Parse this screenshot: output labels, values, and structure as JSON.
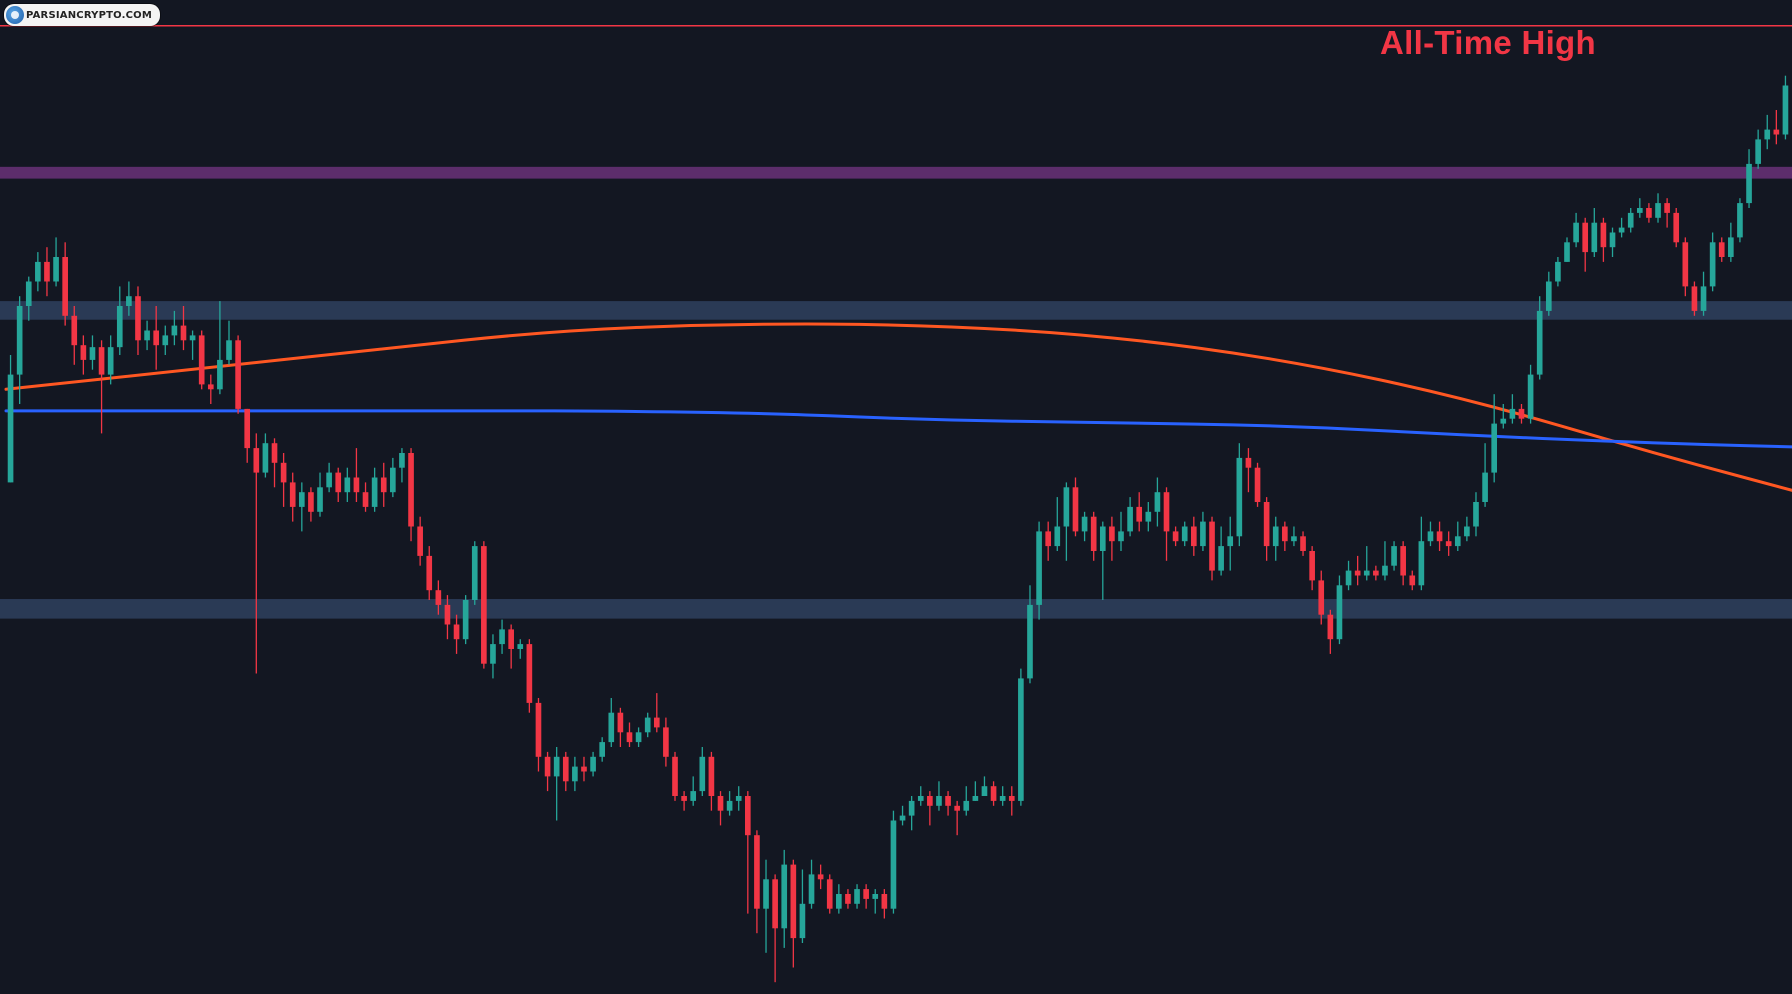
{
  "watermark": {
    "text": "PARSIANCRYPTO.COM",
    "icon": "parsiancrypto-logo-icon"
  },
  "annotation": {
    "label": "All-Time High",
    "color": "#f23645"
  },
  "colors": {
    "background": "#131722",
    "bull": "#26a69a",
    "bear": "#f23645",
    "ma_fast": "#ff5722",
    "ma_slow": "#2962ff",
    "zone_resistance": "#5c2d6b",
    "zone_support": "#2a3a55",
    "ath_line": "#f23645"
  },
  "chart_data": {
    "type": "candlestick",
    "y_scale": "price (unlabeled)",
    "ylim": [
      0,
      100
    ],
    "grid": false,
    "legend": "none",
    "horizontal_lines": [
      {
        "kind": "line",
        "value": 98.6,
        "color": "#f23645",
        "label": "All-Time High"
      }
    ],
    "zones": [
      {
        "from": 83.0,
        "to": 84.2,
        "color": "#5c2d6b"
      },
      {
        "from": 68.6,
        "to": 70.5,
        "color": "#2a3a55"
      },
      {
        "from": 38.1,
        "to": 40.1,
        "color": "#2a3a55"
      }
    ],
    "moving_averages": [
      {
        "color": "#ff5722",
        "points": [
          [
            0,
            61.5
          ],
          [
            20,
            63.5
          ],
          [
            40,
            65.5
          ],
          [
            60,
            67.5
          ],
          [
            80,
            68.2
          ],
          [
            100,
            68.1
          ],
          [
            120,
            67.0
          ],
          [
            140,
            64.5
          ],
          [
            160,
            60.5
          ],
          [
            180,
            55.0
          ],
          [
            200,
            50.0
          ],
          [
            220,
            45.0
          ],
          [
            240,
            40.0
          ],
          [
            260,
            35.5
          ],
          [
            280,
            32.5
          ],
          [
            300,
            31.0
          ],
          [
            320,
            30.6
          ],
          [
            340,
            30.0
          ],
          [
            360,
            30.0
          ],
          [
            380,
            31.0
          ],
          [
            400,
            32.0
          ],
          [
            420,
            33.0
          ],
          [
            440,
            34.0
          ],
          [
            460,
            35.0
          ],
          [
            480,
            37.0
          ],
          [
            500,
            40.5
          ],
          [
            520,
            45.0
          ],
          [
            540,
            49.5
          ],
          [
            560,
            53.0
          ],
          [
            578,
            56.5
          ]
        ]
      },
      {
        "color": "#2962ff",
        "points": [
          [
            0,
            59.3
          ],
          [
            40,
            59.4
          ],
          [
            80,
            59.2
          ],
          [
            100,
            58.4
          ],
          [
            120,
            58.1
          ],
          [
            140,
            57.8
          ],
          [
            160,
            56.8
          ],
          [
            180,
            56.0
          ],
          [
            200,
            55.5
          ],
          [
            220,
            55.0
          ],
          [
            240,
            54.0
          ],
          [
            260,
            53.0
          ],
          [
            280,
            52.0
          ],
          [
            300,
            51.3
          ],
          [
            320,
            51.3
          ],
          [
            340,
            51.2
          ],
          [
            360,
            50.7
          ],
          [
            380,
            50.0
          ],
          [
            400,
            49.4
          ],
          [
            420,
            48.0
          ],
          [
            440,
            46.5
          ],
          [
            460,
            45.3
          ],
          [
            480,
            44.5
          ],
          [
            500,
            44.3
          ],
          [
            520,
            44.5
          ],
          [
            540,
            44.8
          ],
          [
            560,
            45.2
          ],
          [
            578,
            46.2
          ]
        ]
      }
    ],
    "candles": [
      [
        52.0,
        63.0,
        65.0,
        52.0
      ],
      [
        63.0,
        70.0,
        71.0,
        60.0
      ],
      [
        70.0,
        72.5,
        73.0,
        68.5
      ],
      [
        72.5,
        74.5,
        75.5,
        71.5
      ],
      [
        74.5,
        72.5,
        76.0,
        71.0
      ],
      [
        72.5,
        75.0,
        77.0,
        72.0
      ],
      [
        75.0,
        69.0,
        76.5,
        68.0
      ],
      [
        69.0,
        66.0,
        70.0,
        64.0
      ],
      [
        66.0,
        64.5,
        67.0,
        63.0
      ],
      [
        64.5,
        65.8,
        67.0,
        63.5
      ],
      [
        65.8,
        63.0,
        66.5,
        57.0
      ],
      [
        63.0,
        65.8,
        67.0,
        62.0
      ],
      [
        65.8,
        70.0,
        72.0,
        65.0
      ],
      [
        70.0,
        71.0,
        72.5,
        69.0
      ],
      [
        71.0,
        66.5,
        72.0,
        65.0
      ],
      [
        66.5,
        67.5,
        68.5,
        65.5
      ],
      [
        67.5,
        66.0,
        70.0,
        63.5
      ],
      [
        66.0,
        67.0,
        68.0,
        65.0
      ],
      [
        67.0,
        68.0,
        69.5,
        66.0
      ],
      [
        68.0,
        66.5,
        70.0,
        65.5
      ],
      [
        66.5,
        67.0,
        67.5,
        64.5
      ],
      [
        67.0,
        62.0,
        67.5,
        61.5
      ],
      [
        62.0,
        61.5,
        63.0,
        60.0
      ],
      [
        61.5,
        64.5,
        70.5,
        61.0
      ],
      [
        64.5,
        66.5,
        68.5,
        64.0
      ],
      [
        66.5,
        59.5,
        67.0,
        59.0
      ],
      [
        59.5,
        55.5,
        59.5,
        54.0
      ],
      [
        55.5,
        53.0,
        57.0,
        32.5
      ],
      [
        53.0,
        56.0,
        57.0,
        52.5
      ],
      [
        56.0,
        54.0,
        56.5,
        51.5
      ],
      [
        54.0,
        52.0,
        55.0,
        49.5
      ],
      [
        52.0,
        49.5,
        53.0,
        48.0
      ],
      [
        49.5,
        51.0,
        52.0,
        47.0
      ],
      [
        51.0,
        49.0,
        51.5,
        48.0
      ],
      [
        49.0,
        51.5,
        53.0,
        48.5
      ],
      [
        51.5,
        53.0,
        54.0,
        51.0
      ],
      [
        53.0,
        51.0,
        53.5,
        50.0
      ],
      [
        51.0,
        52.5,
        53.5,
        50.0
      ],
      [
        52.5,
        51.0,
        55.5,
        50.0
      ],
      [
        51.0,
        49.5,
        52.0,
        49.0
      ],
      [
        49.5,
        52.5,
        53.5,
        49.0
      ],
      [
        52.5,
        51.0,
        54.0,
        49.5
      ],
      [
        51.0,
        53.5,
        54.5,
        50.5
      ],
      [
        53.5,
        55.0,
        55.5,
        52.0
      ],
      [
        55.0,
        47.5,
        55.5,
        46.0
      ],
      [
        47.5,
        44.5,
        48.5,
        43.5
      ],
      [
        44.5,
        41.0,
        45.5,
        40.0
      ],
      [
        41.0,
        39.5,
        42.0,
        38.5
      ],
      [
        39.5,
        37.5,
        40.5,
        36.0
      ],
      [
        37.5,
        36.0,
        38.5,
        34.5
      ],
      [
        36.0,
        40.0,
        40.5,
        35.5
      ],
      [
        40.0,
        45.5,
        46.0,
        39.5
      ],
      [
        45.5,
        33.5,
        46.0,
        33.0
      ],
      [
        33.5,
        35.5,
        36.5,
        32.0
      ],
      [
        35.5,
        37.0,
        38.0,
        34.5
      ],
      [
        37.0,
        35.0,
        37.5,
        33.0
      ],
      [
        35.0,
        35.5,
        36.0,
        34.0
      ],
      [
        35.5,
        29.5,
        36.0,
        28.5
      ],
      [
        29.5,
        24.0,
        30.0,
        22.5
      ],
      [
        24.0,
        22.0,
        24.5,
        20.5
      ],
      [
        22.0,
        24.0,
        25.0,
        17.5
      ],
      [
        24.0,
        21.5,
        24.5,
        20.5
      ],
      [
        21.5,
        23.0,
        24.0,
        20.5
      ],
      [
        23.0,
        22.5,
        24.0,
        21.5
      ],
      [
        22.5,
        24.0,
        24.5,
        22.0
      ],
      [
        24.0,
        25.5,
        26.0,
        23.5
      ],
      [
        25.5,
        28.5,
        30.0,
        25.0
      ],
      [
        28.5,
        26.5,
        29.0,
        25.0
      ],
      [
        26.5,
        25.5,
        27.5,
        25.0
      ],
      [
        25.5,
        26.5,
        27.0,
        25.0
      ],
      [
        26.5,
        28.0,
        28.5,
        26.0
      ],
      [
        28.0,
        27.0,
        30.5,
        26.5
      ],
      [
        27.0,
        24.0,
        28.0,
        23.0
      ],
      [
        24.0,
        20.0,
        24.5,
        19.5
      ],
      [
        20.0,
        19.5,
        20.5,
        18.5
      ],
      [
        19.5,
        20.5,
        22.0,
        19.0
      ],
      [
        20.5,
        24.0,
        25.0,
        20.0
      ],
      [
        24.0,
        20.0,
        24.5,
        18.5
      ],
      [
        20.0,
        18.5,
        20.5,
        17.0
      ],
      [
        18.5,
        19.5,
        20.5,
        18.0
      ],
      [
        19.5,
        20.0,
        21.0,
        18.5
      ],
      [
        20.0,
        16.0,
        20.5,
        8.0
      ],
      [
        16.0,
        8.5,
        16.5,
        6.0
      ],
      [
        8.5,
        11.5,
        13.5,
        4.0
      ],
      [
        11.5,
        6.5,
        12.0,
        1.0
      ],
      [
        6.5,
        13.0,
        14.5,
        4.5
      ],
      [
        13.0,
        5.5,
        13.5,
        2.5
      ],
      [
        5.5,
        9.0,
        12.5,
        5.0
      ],
      [
        9.0,
        12.0,
        13.5,
        8.5
      ],
      [
        12.0,
        11.5,
        13.0,
        10.5
      ],
      [
        11.5,
        8.5,
        12.0,
        8.0
      ],
      [
        8.5,
        10.0,
        11.0,
        8.0
      ],
      [
        10.0,
        9.0,
        10.5,
        8.5
      ],
      [
        9.0,
        10.5,
        11.0,
        8.5
      ],
      [
        10.5,
        9.5,
        11.0,
        8.5
      ],
      [
        9.5,
        10.0,
        10.5,
        8.0
      ],
      [
        10.0,
        8.5,
        10.5,
        7.5
      ],
      [
        8.5,
        17.5,
        18.5,
        8.0
      ],
      [
        17.5,
        18.0,
        19.0,
        17.0
      ],
      [
        18.0,
        19.5,
        20.0,
        16.5
      ],
      [
        19.5,
        20.0,
        21.0,
        19.0
      ],
      [
        20.0,
        19.0,
        20.5,
        17.0
      ],
      [
        19.0,
        20.0,
        21.5,
        18.5
      ],
      [
        20.0,
        19.0,
        20.5,
        18.0
      ],
      [
        19.0,
        18.5,
        19.5,
        16.0
      ],
      [
        18.5,
        19.5,
        21.0,
        18.0
      ],
      [
        19.5,
        20.0,
        21.5,
        19.5
      ],
      [
        20.0,
        21.0,
        22.0,
        20.0
      ],
      [
        21.0,
        19.5,
        21.5,
        19.0
      ],
      [
        19.5,
        20.0,
        21.0,
        19.0
      ],
      [
        20.0,
        19.5,
        21.0,
        18.0
      ],
      [
        19.5,
        32.0,
        33.0,
        19.0
      ],
      [
        32.0,
        39.5,
        41.5,
        31.5
      ],
      [
        39.5,
        47.0,
        48.0,
        38.0
      ],
      [
        47.0,
        45.5,
        48.0,
        44.0
      ],
      [
        45.5,
        47.5,
        50.5,
        45.0
      ],
      [
        47.5,
        51.5,
        52.0,
        44.0
      ],
      [
        51.5,
        47.0,
        52.5,
        46.5
      ],
      [
        47.0,
        48.5,
        49.0,
        46.0
      ],
      [
        48.5,
        45.0,
        49.0,
        44.0
      ],
      [
        45.0,
        47.5,
        48.0,
        40.0
      ],
      [
        47.5,
        46.0,
        48.5,
        44.0
      ],
      [
        46.0,
        47.0,
        49.0,
        45.0
      ],
      [
        47.0,
        49.5,
        50.5,
        46.5
      ],
      [
        49.5,
        48.0,
        51.0,
        47.0
      ],
      [
        48.0,
        49.0,
        50.0,
        47.0
      ],
      [
        49.0,
        51.0,
        52.5,
        47.5
      ],
      [
        51.0,
        47.0,
        51.5,
        44.0
      ],
      [
        47.0,
        46.0,
        47.5,
        45.5
      ],
      [
        46.0,
        47.5,
        48.0,
        45.5
      ],
      [
        47.5,
        45.5,
        48.5,
        44.5
      ],
      [
        45.5,
        48.0,
        49.0,
        45.0
      ],
      [
        48.0,
        43.0,
        48.5,
        42.0
      ],
      [
        43.0,
        45.5,
        47.5,
        42.5
      ],
      [
        45.5,
        46.5,
        48.5,
        43.0
      ],
      [
        46.5,
        54.5,
        56.0,
        45.5
      ],
      [
        54.5,
        53.5,
        55.5,
        51.0
      ],
      [
        53.5,
        50.0,
        54.0,
        49.5
      ],
      [
        50.0,
        45.5,
        50.5,
        44.0
      ],
      [
        45.5,
        47.5,
        48.5,
        44.0
      ],
      [
        47.5,
        46.0,
        48.0,
        45.0
      ],
      [
        46.0,
        46.5,
        47.5,
        45.5
      ],
      [
        46.5,
        45.0,
        47.0,
        44.5
      ],
      [
        45.0,
        42.0,
        45.5,
        41.0
      ],
      [
        42.0,
        38.5,
        43.0,
        37.5
      ],
      [
        38.5,
        36.0,
        39.0,
        34.5
      ],
      [
        36.0,
        41.5,
        42.5,
        35.5
      ],
      [
        41.5,
        43.0,
        44.0,
        41.0
      ],
      [
        43.0,
        42.5,
        44.5,
        41.5
      ],
      [
        42.5,
        43.0,
        45.5,
        42.0
      ],
      [
        43.0,
        42.5,
        43.5,
        42.0
      ],
      [
        42.5,
        43.5,
        46.0,
        42.0
      ],
      [
        43.5,
        45.5,
        46.0,
        43.0
      ],
      [
        45.5,
        42.5,
        46.0,
        41.5
      ],
      [
        42.5,
        41.5,
        43.0,
        41.0
      ],
      [
        41.5,
        46.0,
        48.5,
        41.0
      ],
      [
        46.0,
        47.0,
        48.0,
        45.5
      ],
      [
        47.0,
        46.0,
        48.0,
        45.0
      ],
      [
        46.0,
        45.5,
        47.0,
        44.5
      ],
      [
        45.5,
        46.5,
        48.0,
        45.0
      ],
      [
        46.5,
        47.5,
        48.5,
        46.0
      ],
      [
        47.5,
        50.0,
        51.0,
        46.5
      ],
      [
        50.0,
        53.0,
        56.0,
        49.5
      ],
      [
        53.0,
        58.0,
        61.0,
        52.0
      ],
      [
        58.0,
        58.5,
        60.0,
        57.5
      ],
      [
        58.5,
        59.5,
        61.0,
        58.0
      ],
      [
        59.5,
        58.5,
        60.0,
        58.0
      ],
      [
        58.5,
        63.0,
        64.0,
        58.0
      ],
      [
        63.0,
        69.5,
        71.0,
        62.5
      ],
      [
        69.5,
        72.5,
        73.5,
        69.0
      ],
      [
        72.5,
        74.5,
        75.0,
        72.0
      ],
      [
        74.5,
        76.5,
        77.0,
        74.5
      ],
      [
        76.5,
        78.5,
        79.5,
        76.0
      ],
      [
        78.5,
        75.5,
        79.0,
        73.5
      ],
      [
        75.5,
        78.5,
        80.0,
        75.0
      ],
      [
        78.5,
        76.0,
        79.0,
        74.5
      ],
      [
        76.0,
        77.5,
        78.0,
        75.0
      ],
      [
        77.5,
        78.0,
        79.0,
        77.0
      ],
      [
        78.0,
        79.5,
        80.0,
        77.5
      ],
      [
        79.5,
        80.0,
        81.0,
        79.0
      ],
      [
        80.0,
        79.0,
        80.5,
        78.5
      ],
      [
        79.0,
        80.5,
        81.5,
        78.5
      ],
      [
        80.5,
        79.5,
        81.0,
        78.0
      ],
      [
        79.5,
        76.5,
        80.0,
        76.0
      ],
      [
        76.5,
        72.0,
        77.0,
        71.0
      ],
      [
        72.0,
        69.5,
        72.5,
        69.0
      ],
      [
        69.5,
        72.0,
        73.5,
        69.0
      ],
      [
        72.0,
        76.5,
        77.5,
        71.5
      ],
      [
        76.5,
        75.0,
        77.0,
        74.5
      ],
      [
        75.0,
        77.0,
        78.5,
        74.5
      ],
      [
        77.0,
        80.5,
        81.0,
        76.5
      ],
      [
        80.5,
        84.5,
        86.0,
        80.0
      ],
      [
        84.5,
        87.0,
        88.0,
        84.0
      ],
      [
        87.0,
        88.0,
        89.5,
        86.0
      ],
      [
        88.0,
        87.5,
        90.0,
        86.5
      ],
      [
        87.5,
        92.5,
        93.5,
        87.0
      ]
    ]
  }
}
